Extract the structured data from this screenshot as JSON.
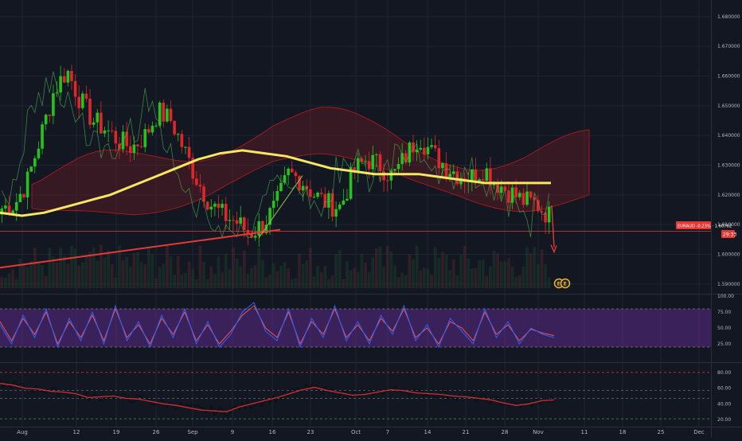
{
  "symbol_badge": {
    "text": "EURAUD -0.23% · 1.60782",
    "timer": "29:33",
    "color": "#e53935"
  },
  "event_markers": [
    "E",
    "E"
  ],
  "colors": {
    "background": "#131722",
    "bull_candle": "#26c21d",
    "bear_candle": "#e0262b",
    "ma_line": "#f5e663",
    "trend_line": "#e53935",
    "stoch_k": "#2962ff",
    "stoch_d": "#ef5350",
    "stoch_band": "#5b2a86",
    "rsi_line": "#d32f2f"
  },
  "chart_data": [
    {
      "type": "candlestick",
      "name_on_chart": "",
      "ylim": [
        1.587,
        1.684
      ],
      "price_axis_labels": [
        "1.680000",
        "1.670000",
        "1.660000",
        "1.650000",
        "1.640000",
        "1.630000",
        "1.620000",
        "1.610000",
        "1.600000",
        "1.590000"
      ],
      "price_axis_values": [
        1.68,
        1.67,
        1.66,
        1.65,
        1.64,
        1.63,
        1.62,
        1.61,
        1.6,
        1.59
      ],
      "x_tick_labels": [
        "Aug",
        "12",
        "19",
        "26",
        "Sep",
        "9",
        "16",
        "23",
        "Oct",
        "7",
        "14",
        "21",
        "28",
        "Nov",
        "11",
        "18",
        "25",
        "Dec"
      ],
      "close_series_sampled": [
        1.6155,
        1.617,
        1.625,
        1.64,
        1.655,
        1.662,
        1.652,
        1.645,
        1.642,
        1.638,
        1.636,
        1.64,
        1.648,
        1.645,
        1.635,
        1.625,
        1.617,
        1.613,
        1.611,
        1.607,
        1.61,
        1.616,
        1.627,
        1.625,
        1.62,
        1.617,
        1.616,
        1.628,
        1.632,
        1.63,
        1.626,
        1.633,
        1.64,
        1.634,
        1.63,
        1.627,
        1.626,
        1.629,
        1.624,
        1.621,
        1.618,
        1.617,
        1.613
      ],
      "moving_average_sampled": [
        1.614,
        1.613,
        1.614,
        1.616,
        1.618,
        1.62,
        1.623,
        1.626,
        1.629,
        1.632,
        1.634,
        1.635,
        1.634,
        1.633,
        1.631,
        1.629,
        1.628,
        1.627,
        1.627,
        1.627,
        1.626,
        1.625,
        1.624,
        1.624,
        1.624,
        1.624
      ],
      "horizontal_level": 1.6078,
      "last_price": 1.60782,
      "trend_line": {
        "start": 1.5955,
        "end": 1.6083
      },
      "projection_arrow_target": 1.6008,
      "volume_visible": true
    },
    {
      "type": "line",
      "indicator": "stochastic",
      "ylim": [
        0,
        100
      ],
      "axis_labels": [
        "100.00",
        "75.00",
        "50.00",
        "25.00"
      ],
      "axis_values": [
        100,
        75,
        50,
        25
      ],
      "band": [
        20,
        80
      ],
      "k_sampled": [
        55,
        25,
        70,
        35,
        80,
        20,
        65,
        30,
        75,
        25,
        85,
        30,
        60,
        20,
        70,
        35,
        80,
        25,
        60,
        20,
        40,
        75,
        90,
        45,
        30,
        80,
        20,
        65,
        35,
        85,
        30,
        60,
        25,
        70,
        40,
        85,
        30,
        55,
        20,
        65,
        45,
        25,
        80,
        35,
        60,
        25,
        50,
        40,
        35
      ],
      "d_sampled": [
        60,
        30,
        65,
        40,
        75,
        25,
        60,
        35,
        70,
        30,
        80,
        35,
        55,
        25,
        65,
        40,
        75,
        30,
        55,
        25,
        45,
        70,
        85,
        50,
        35,
        75,
        25,
        60,
        40,
        80,
        35,
        55,
        30,
        65,
        45,
        80,
        35,
        50,
        25,
        60,
        50,
        30,
        75,
        40,
        55,
        30,
        48,
        42,
        38
      ]
    },
    {
      "type": "line",
      "indicator": "rsi",
      "ylim": [
        15,
        90
      ],
      "axis_labels": [
        "80.00",
        "60.00",
        "40.00",
        "20.00"
      ],
      "axis_values": [
        80,
        60,
        40,
        20
      ],
      "reference_levels": [
        80,
        57,
        47,
        21
      ],
      "values_sampled": [
        66,
        64,
        60,
        59,
        56,
        55,
        53,
        48,
        49,
        50,
        47,
        46,
        43,
        40,
        38,
        35,
        32,
        31,
        30,
        36,
        40,
        44,
        48,
        53,
        58,
        61,
        57,
        54,
        51,
        52,
        55,
        58,
        57,
        54,
        53,
        52,
        50,
        49,
        47,
        45,
        41,
        38,
        40,
        44,
        45
      ]
    }
  ]
}
